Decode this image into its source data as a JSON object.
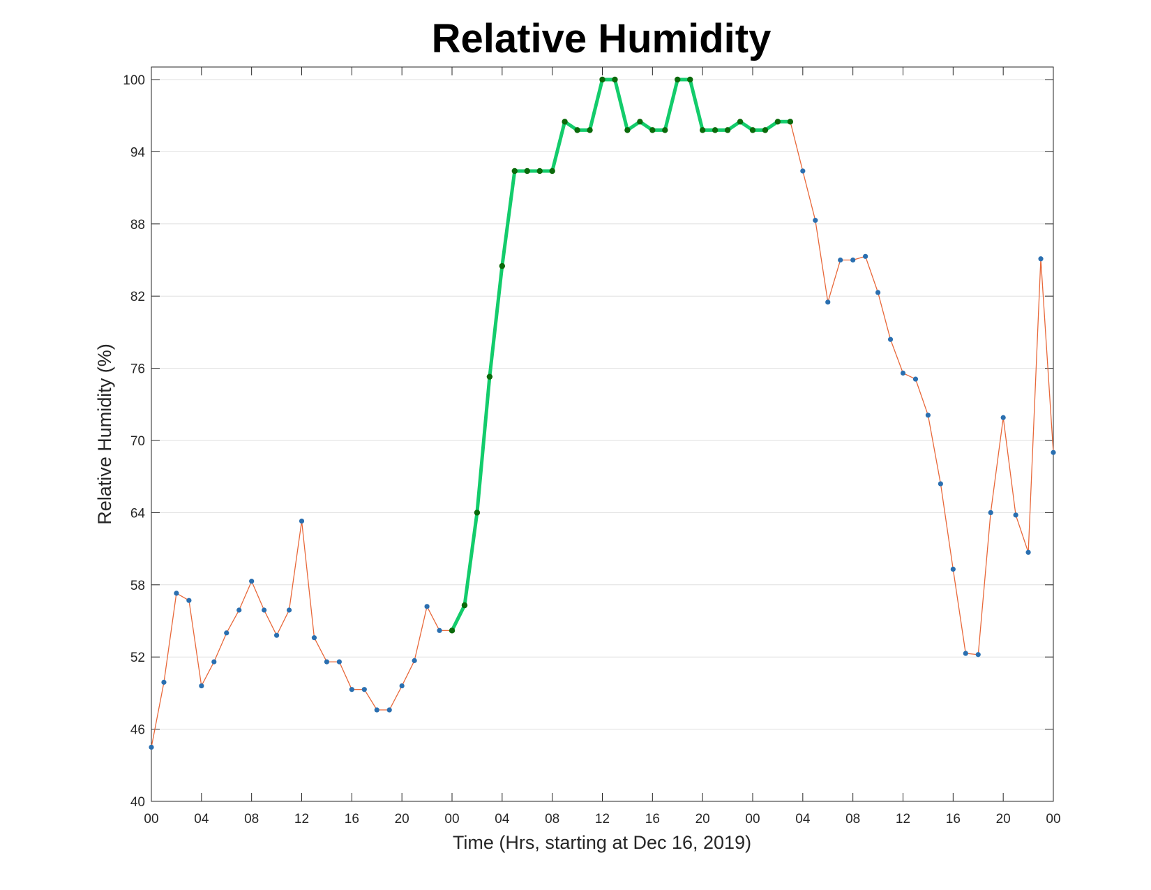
{
  "chart_data": {
    "type": "line",
    "title": "Relative Humidity",
    "xlabel": "Time (Hrs, starting at Dec 16, 2019)",
    "ylabel": "Relative Humidity (%)",
    "xlim": [
      0,
      72
    ],
    "ylim": [
      40,
      100
    ],
    "x_ticks": [
      0,
      4,
      8,
      12,
      16,
      20,
      24,
      28,
      32,
      36,
      40,
      44,
      48,
      52,
      56,
      60,
      64,
      68,
      72
    ],
    "x_tick_labels": [
      "00",
      "04",
      "08",
      "12",
      "16",
      "20",
      "00",
      "04",
      "08",
      "12",
      "16",
      "20",
      "00",
      "04",
      "08",
      "12",
      "16",
      "20",
      "00"
    ],
    "y_ticks": [
      40,
      46,
      52,
      58,
      64,
      70,
      76,
      82,
      88,
      94,
      100
    ],
    "y_tick_labels": [
      "40",
      "46",
      "52",
      "58",
      "64",
      "70",
      "76",
      "82",
      "88",
      "94",
      "100"
    ],
    "grid": "horizontal",
    "colors": {
      "base_line": "#e8683a",
      "base_marker": "#2a6fb0",
      "highlight_line": "#13cc6b",
      "highlight_marker": "#0b6a0b"
    },
    "series": [
      {
        "x": [
          0,
          1,
          2,
          3,
          4,
          5,
          6,
          7,
          8,
          9,
          10,
          11,
          12,
          13,
          14,
          15,
          16,
          17,
          18,
          19,
          20,
          21,
          22,
          23,
          24,
          25,
          26,
          27,
          28,
          29,
          30,
          31,
          32,
          33,
          34,
          35,
          36,
          37,
          38,
          39,
          40,
          41,
          42,
          43,
          44,
          45,
          46,
          47,
          48,
          49,
          50,
          51,
          52,
          53,
          54,
          55,
          56,
          57,
          58,
          59,
          60,
          61,
          62,
          63,
          64,
          65,
          66,
          67,
          68,
          69,
          70,
          71,
          72
        ],
        "values": [
          44.5,
          49.9,
          57.3,
          56.7,
          49.6,
          51.6,
          54.0,
          55.9,
          58.3,
          55.9,
          53.8,
          55.9,
          63.3,
          53.6,
          51.6,
          51.6,
          49.3,
          49.3,
          47.6,
          47.6,
          49.6,
          51.7,
          56.2,
          54.2,
          54.2,
          56.3,
          64.0,
          75.3,
          84.5,
          92.4,
          92.4,
          92.4,
          92.4,
          96.5,
          95.8,
          95.8,
          100.0,
          100.0,
          95.8,
          96.5,
          95.8,
          95.8,
          100.0,
          100.0,
          95.8,
          95.8,
          95.8,
          96.5,
          95.8,
          95.8,
          96.5,
          96.5,
          92.4,
          88.3,
          81.5,
          85.0,
          85.0,
          85.3,
          82.3,
          78.4,
          75.6,
          75.1,
          72.1,
          66.4,
          59.3,
          52.3,
          52.2,
          64.0,
          71.9,
          63.8,
          60.7,
          85.1,
          69.0
        ]
      },
      {
        "x": [
          24,
          25,
          26,
          27,
          28,
          29,
          30,
          31,
          32,
          33,
          34,
          35,
          36,
          37,
          38,
          39,
          40,
          41,
          42,
          43,
          44,
          45,
          46,
          47,
          48,
          49,
          50,
          51
        ],
        "values": [
          54.2,
          56.3,
          64.0,
          75.3,
          84.5,
          92.4,
          92.4,
          92.4,
          92.4,
          96.5,
          95.8,
          95.8,
          100.0,
          100.0,
          95.8,
          96.5,
          95.8,
          95.8,
          100.0,
          100.0,
          95.8,
          95.8,
          95.8,
          96.5,
          95.8,
          95.8,
          96.5,
          96.5
        ]
      }
    ]
  }
}
